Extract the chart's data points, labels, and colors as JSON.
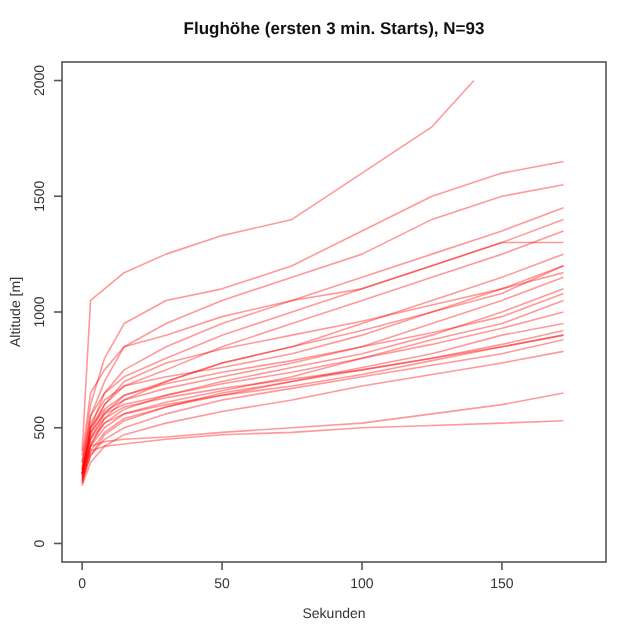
{
  "chart_data": {
    "type": "line",
    "title": "Flughöhe (ersten 3 min. Starts), N=93",
    "xlabel": "Sekunden",
    "ylabel": "Altitude [m]",
    "xlim": [
      -7.2,
      187.2
    ],
    "ylim": [
      -80,
      2080
    ],
    "xticks": [
      0,
      50,
      100,
      150
    ],
    "yticks": [
      0,
      500,
      1000,
      1500,
      2000
    ],
    "grid": false,
    "x": [
      0,
      3,
      8,
      15,
      30,
      50,
      75,
      100,
      125,
      150,
      172
    ],
    "series": [
      {
        "color": "#ff0000",
        "x": [
          0,
          3,
          8,
          15,
          30,
          50,
          75,
          100,
          125,
          140
        ],
        "values": [
          400,
          1050,
          1100,
          1170,
          1250,
          1330,
          1400,
          1600,
          1800,
          2000
        ]
      },
      {
        "color": "#ff0000",
        "values": [
          350,
          600,
          800,
          950,
          1050,
          1100,
          1200,
          1350,
          1500,
          1600,
          1650
        ]
      },
      {
        "color": "#ff0000",
        "values": [
          320,
          550,
          700,
          850,
          950,
          1050,
          1150,
          1250,
          1400,
          1500,
          1550
        ]
      },
      {
        "color": "#ff0000",
        "values": [
          300,
          500,
          650,
          750,
          850,
          950,
          1050,
          1150,
          1250,
          1350,
          1450
        ]
      },
      {
        "color": "#ff0000",
        "values": [
          380,
          650,
          750,
          850,
          900,
          980,
          1050,
          1100,
          1200,
          1300,
          1400
        ]
      },
      {
        "color": "#ff0000",
        "values": [
          300,
          480,
          600,
          680,
          750,
          850,
          950,
          1050,
          1150,
          1250,
          1350
        ]
      },
      {
        "color": "#ff0000",
        "values": [
          280,
          450,
          560,
          640,
          700,
          780,
          850,
          950,
          1050,
          1150,
          1250
        ]
      },
      {
        "color": "#ff0000",
        "values": [
          330,
          520,
          620,
          680,
          720,
          760,
          820,
          900,
          1000,
          1100,
          1200
        ]
      },
      {
        "color": "#ff0000",
        "values": [
          300,
          470,
          570,
          620,
          670,
          720,
          780,
          850,
          950,
          1050,
          1150
        ]
      },
      {
        "color": "#ff0000",
        "values": [
          290,
          430,
          520,
          580,
          640,
          700,
          760,
          820,
          900,
          1000,
          1100
        ]
      },
      {
        "color": "#ff0000",
        "values": [
          270,
          420,
          500,
          560,
          610,
          660,
          720,
          800,
          880,
          950,
          1050
        ]
      },
      {
        "color": "#ff0000",
        "values": [
          310,
          480,
          560,
          600,
          640,
          690,
          740,
          800,
          860,
          930,
          1000
        ]
      },
      {
        "color": "#ff0000",
        "values": [
          260,
          400,
          480,
          540,
          590,
          640,
          700,
          760,
          820,
          900,
          950
        ]
      },
      {
        "color": "#ff0000",
        "values": [
          300,
          450,
          520,
          560,
          600,
          640,
          680,
          730,
          790,
          850,
          900
        ]
      },
      {
        "color": "#ff0000",
        "values": [
          280,
          380,
          450,
          500,
          560,
          620,
          670,
          720,
          770,
          820,
          880
        ]
      },
      {
        "color": "#ff0000",
        "values": [
          250,
          350,
          420,
          470,
          520,
          570,
          620,
          680,
          730,
          780,
          830
        ]
      },
      {
        "color": "#ff0000",
        "values": [
          320,
          420,
          440,
          450,
          460,
          480,
          500,
          520,
          560,
          600,
          650
        ]
      },
      {
        "color": "#ff0000",
        "values": [
          300,
          400,
          420,
          430,
          450,
          470,
          480,
          500,
          510,
          520,
          530
        ]
      },
      {
        "color": "#ff0000",
        "values": [
          270,
          420,
          540,
          620,
          700,
          780,
          850,
          920,
          1000,
          1080,
          1200
        ]
      },
      {
        "color": "#ff0000",
        "values": [
          350,
          550,
          650,
          720,
          800,
          900,
          1000,
          1100,
          1200,
          1300,
          1300
        ]
      },
      {
        "color": "#ff0000",
        "values": [
          300,
          500,
          580,
          640,
          690,
          740,
          790,
          850,
          910,
          980,
          1080
        ]
      },
      {
        "color": "#ff0000",
        "values": [
          320,
          460,
          540,
          590,
          630,
          670,
          710,
          750,
          800,
          860,
          920
        ]
      },
      {
        "color": "#ff0000",
        "values": [
          290,
          500,
          600,
          700,
          780,
          840,
          900,
          960,
          1030,
          1100,
          1170
        ]
      },
      {
        "color": "#ff0000",
        "values": [
          260,
          380,
          470,
          530,
          590,
          650,
          700,
          750,
          800,
          850,
          900
        ]
      }
    ]
  }
}
